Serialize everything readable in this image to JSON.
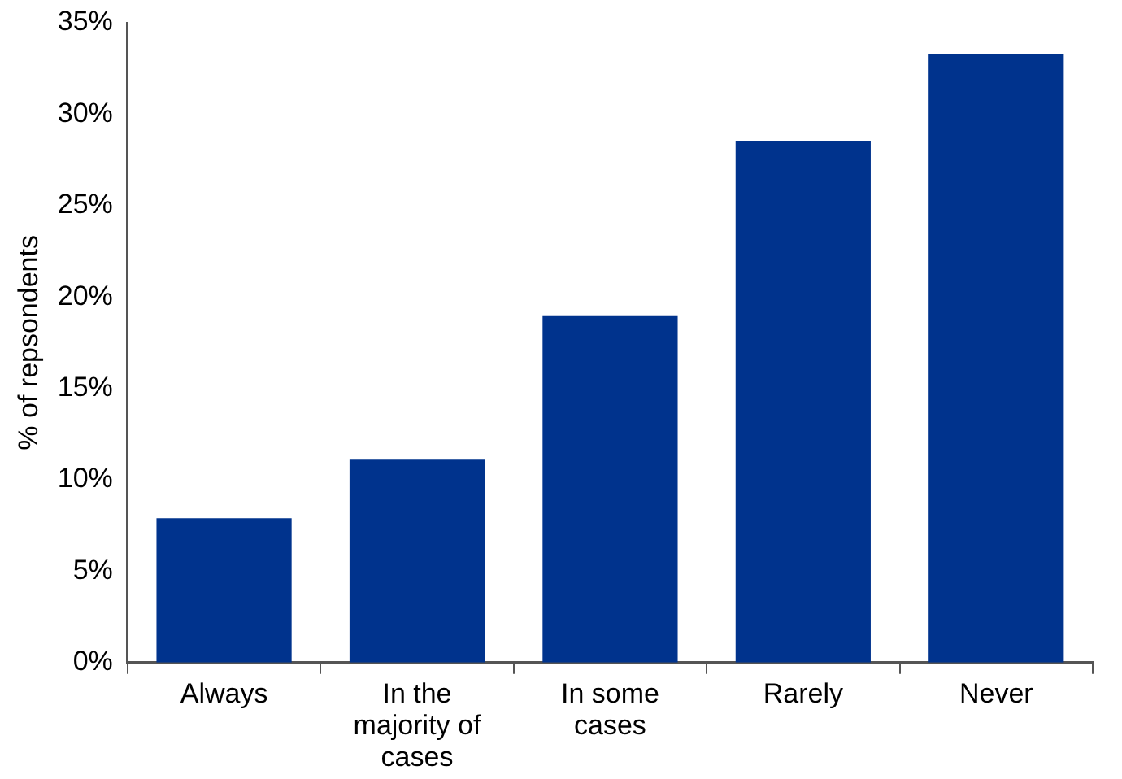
{
  "chart_data": {
    "type": "bar",
    "ylabel": "% of repsondents",
    "categories": [
      "Always",
      "In the majority of cases",
      "In some cases",
      "Rarely",
      "Never"
    ],
    "values": [
      7.9,
      11.1,
      19.0,
      28.5,
      33.3
    ],
    "color": "#00338d",
    "ylim": [
      0,
      35
    ],
    "yticks": [
      {
        "value": 0,
        "label": "0%"
      },
      {
        "value": 5,
        "label": "5%"
      },
      {
        "value": 10,
        "label": "10%"
      },
      {
        "value": 15,
        "label": "15%"
      },
      {
        "value": 20,
        "label": "20%"
      },
      {
        "value": 25,
        "label": "25%"
      },
      {
        "value": 30,
        "label": "30%"
      },
      {
        "value": 35,
        "label": "35%"
      }
    ],
    "grid": false,
    "legend": false
  }
}
